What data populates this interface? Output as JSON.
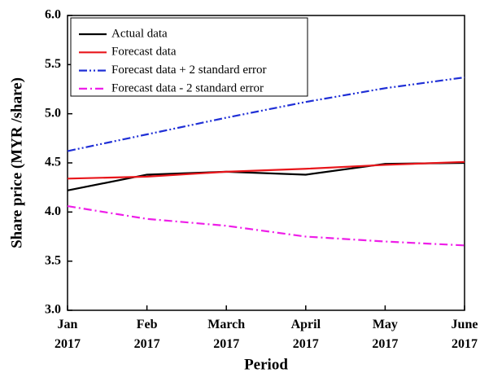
{
  "chart_data": {
    "type": "line",
    "x_label": "Period",
    "y_label": "Share price (MYR /share)",
    "categories": [
      "Jan\n2017",
      "Feb\n2017",
      "March\n2017",
      "April\n2017",
      "May\n2017",
      "June\n2017"
    ],
    "series": [
      {
        "name": "Actual data",
        "color": "#000000",
        "dash": "solid",
        "values": [
          4.22,
          4.38,
          4.41,
          4.38,
          4.49,
          4.5
        ]
      },
      {
        "name": "Forecast data",
        "color": "#e8161b",
        "dash": "solid",
        "values": [
          4.34,
          4.36,
          4.41,
          4.44,
          4.48,
          4.51
        ]
      },
      {
        "name": "Forecast data + 2 standard error",
        "color": "#1f2fd6",
        "dash": "dashdotdot",
        "values": [
          4.62,
          4.79,
          4.96,
          5.12,
          5.26,
          5.37
        ]
      },
      {
        "name": "Forecast data - 2 standard error",
        "color": "#ee1ee8",
        "dash": "dashdot",
        "values": [
          4.06,
          3.93,
          3.86,
          3.75,
          3.7,
          3.66
        ]
      }
    ],
    "ylim": [
      3,
      6
    ],
    "yticks": [
      {
        "value": 3,
        "label": "3.0"
      },
      {
        "value": 3.5,
        "label": "3.5"
      },
      {
        "value": 4,
        "label": "4.0"
      },
      {
        "value": 4.5,
        "label": "4.5"
      },
      {
        "value": 5,
        "label": "5.0"
      },
      {
        "value": 5.5,
        "label": "5.5"
      },
      {
        "value": 6,
        "label": "6.0"
      }
    ],
    "legend": "upper left",
    "grid": false
  }
}
